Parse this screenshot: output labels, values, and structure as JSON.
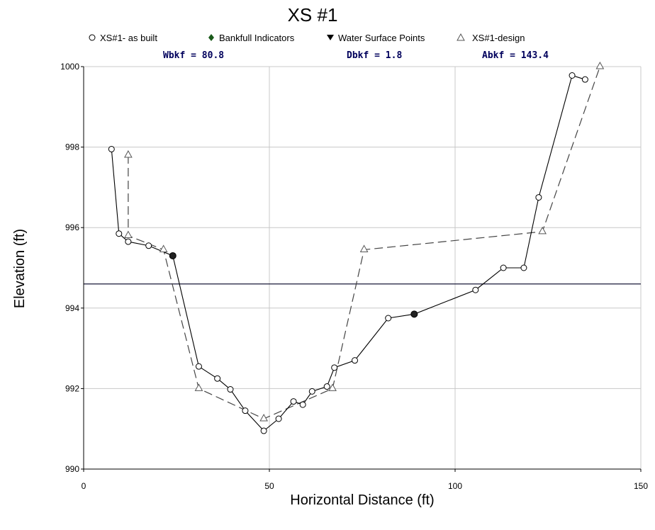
{
  "chart_data": {
    "type": "line",
    "title": "XS #1",
    "xlabel": "Horizontal Distance (ft)",
    "ylabel": "Elevation (ft)",
    "xlim": [
      0,
      150
    ],
    "ylim": [
      990,
      1000
    ],
    "xticks": [
      0,
      50,
      100,
      150
    ],
    "yticks": [
      990,
      992,
      994,
      996,
      998,
      1000
    ],
    "grid": true,
    "legend_position": "top",
    "stats": [
      "Wbkf = 80.8",
      "Dbkf = 1.8",
      "Abkf = 143.4"
    ],
    "reference_line": {
      "y": 994.6
    },
    "series": [
      {
        "name": "XS#1- as built",
        "marker": "circle",
        "color": "#000000",
        "x": [
          7.5,
          9.5,
          12,
          17.5,
          24,
          31,
          36,
          39.5,
          43.5,
          48.5,
          52.5,
          56.5,
          59,
          61.5,
          65.5,
          67.5,
          73,
          82,
          89,
          105.5,
          113,
          118.5,
          122.5,
          131.5,
          135
        ],
        "y": [
          997.95,
          995.85,
          995.65,
          995.55,
          995.3,
          992.55,
          992.25,
          991.98,
          991.45,
          990.95,
          991.25,
          991.68,
          991.6,
          991.93,
          992.05,
          992.52,
          992.7,
          993.75,
          993.85,
          994.45,
          995.0,
          995.0,
          996.75,
          999.78,
          999.68
        ]
      },
      {
        "name": "Bankfull Indicators",
        "marker": "diamond",
        "color": "#1a5a1a",
        "x": [
          24,
          89
        ],
        "y": [
          995.3,
          993.85
        ]
      },
      {
        "name": "Water Surface Points",
        "marker": "triangle-down",
        "color": "#000000",
        "x": [],
        "y": []
      },
      {
        "name": "XS#1-design",
        "marker": "triangle",
        "color": "#555555",
        "x": [
          12,
          12,
          21.5,
          31,
          48.5,
          67,
          75.5,
          123.5,
          139
        ],
        "y": [
          997.8,
          995.8,
          995.45,
          992.0,
          991.25,
          992.0,
          995.45,
          995.9,
          1000.0
        ]
      }
    ]
  }
}
